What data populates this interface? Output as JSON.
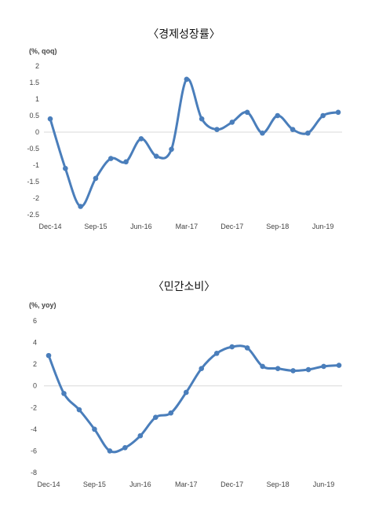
{
  "charts": [
    {
      "title": "〈경제성장률〉",
      "unit": "(%, qoq)"
    },
    {
      "title": "〈민간소비〉",
      "unit": "(%, yoy)"
    }
  ],
  "chart_data": [
    {
      "type": "line",
      "title": "〈경제성장률〉",
      "ylabel": "(%, qoq)",
      "ylim": [
        -2.5,
        2
      ],
      "yticks": [
        "2",
        "1.5",
        "1",
        "0.5",
        "0",
        "-0.5",
        "-1",
        "-1.5",
        "-2",
        "-2.5"
      ],
      "xticks": [
        "Dec-14",
        "Sep-15",
        "Jun-16",
        "Mar-17",
        "Dec-17",
        "Sep-18",
        "Jun-19"
      ],
      "x": [
        "Dec-14",
        "Mar-15",
        "Jun-15",
        "Sep-15",
        "Dec-15",
        "Mar-16",
        "Jun-16",
        "Sep-16",
        "Dec-16",
        "Mar-17",
        "Jun-17",
        "Sep-17",
        "Dec-17",
        "Mar-18",
        "Jun-18",
        "Sep-18",
        "Dec-18",
        "Mar-19",
        "Jun-19",
        "Sep-19"
      ],
      "values": [
        0.4,
        -1.1,
        -2.25,
        -1.4,
        -0.8,
        -0.9,
        -0.2,
        -0.73,
        -0.52,
        1.6,
        0.4,
        0.08,
        0.3,
        0.6,
        -0.03,
        0.5,
        0.08,
        -0.03,
        0.5,
        0.6
      ],
      "color": "#4a7ebb",
      "grid": false
    },
    {
      "type": "line",
      "title": "〈민간소비〉",
      "ylabel": "(%, yoy)",
      "ylim": [
        -8,
        6
      ],
      "yticks": [
        "6",
        "4",
        "2",
        "0",
        "-2",
        "-4",
        "-6",
        "-8"
      ],
      "xticks": [
        "Dec-14",
        "Sep-15",
        "Jun-16",
        "Mar-17",
        "Dec-17",
        "Sep-18",
        "Jun-19"
      ],
      "x": [
        "Dec-14",
        "Mar-15",
        "Jun-15",
        "Sep-15",
        "Dec-15",
        "Mar-16",
        "Jun-16",
        "Sep-16",
        "Dec-16",
        "Mar-17",
        "Jun-17",
        "Sep-17",
        "Dec-17",
        "Mar-18",
        "Jun-18",
        "Sep-18",
        "Dec-18",
        "Mar-19",
        "Jun-19",
        "Sep-19"
      ],
      "values": [
        2.8,
        -0.7,
        -2.2,
        -4.0,
        -6.0,
        -5.7,
        -4.6,
        -2.9,
        -2.5,
        -0.6,
        1.6,
        3.0,
        3.6,
        3.5,
        1.8,
        1.6,
        1.4,
        1.5,
        1.8,
        1.9
      ],
      "color": "#4a7ebb",
      "grid": false
    }
  ]
}
